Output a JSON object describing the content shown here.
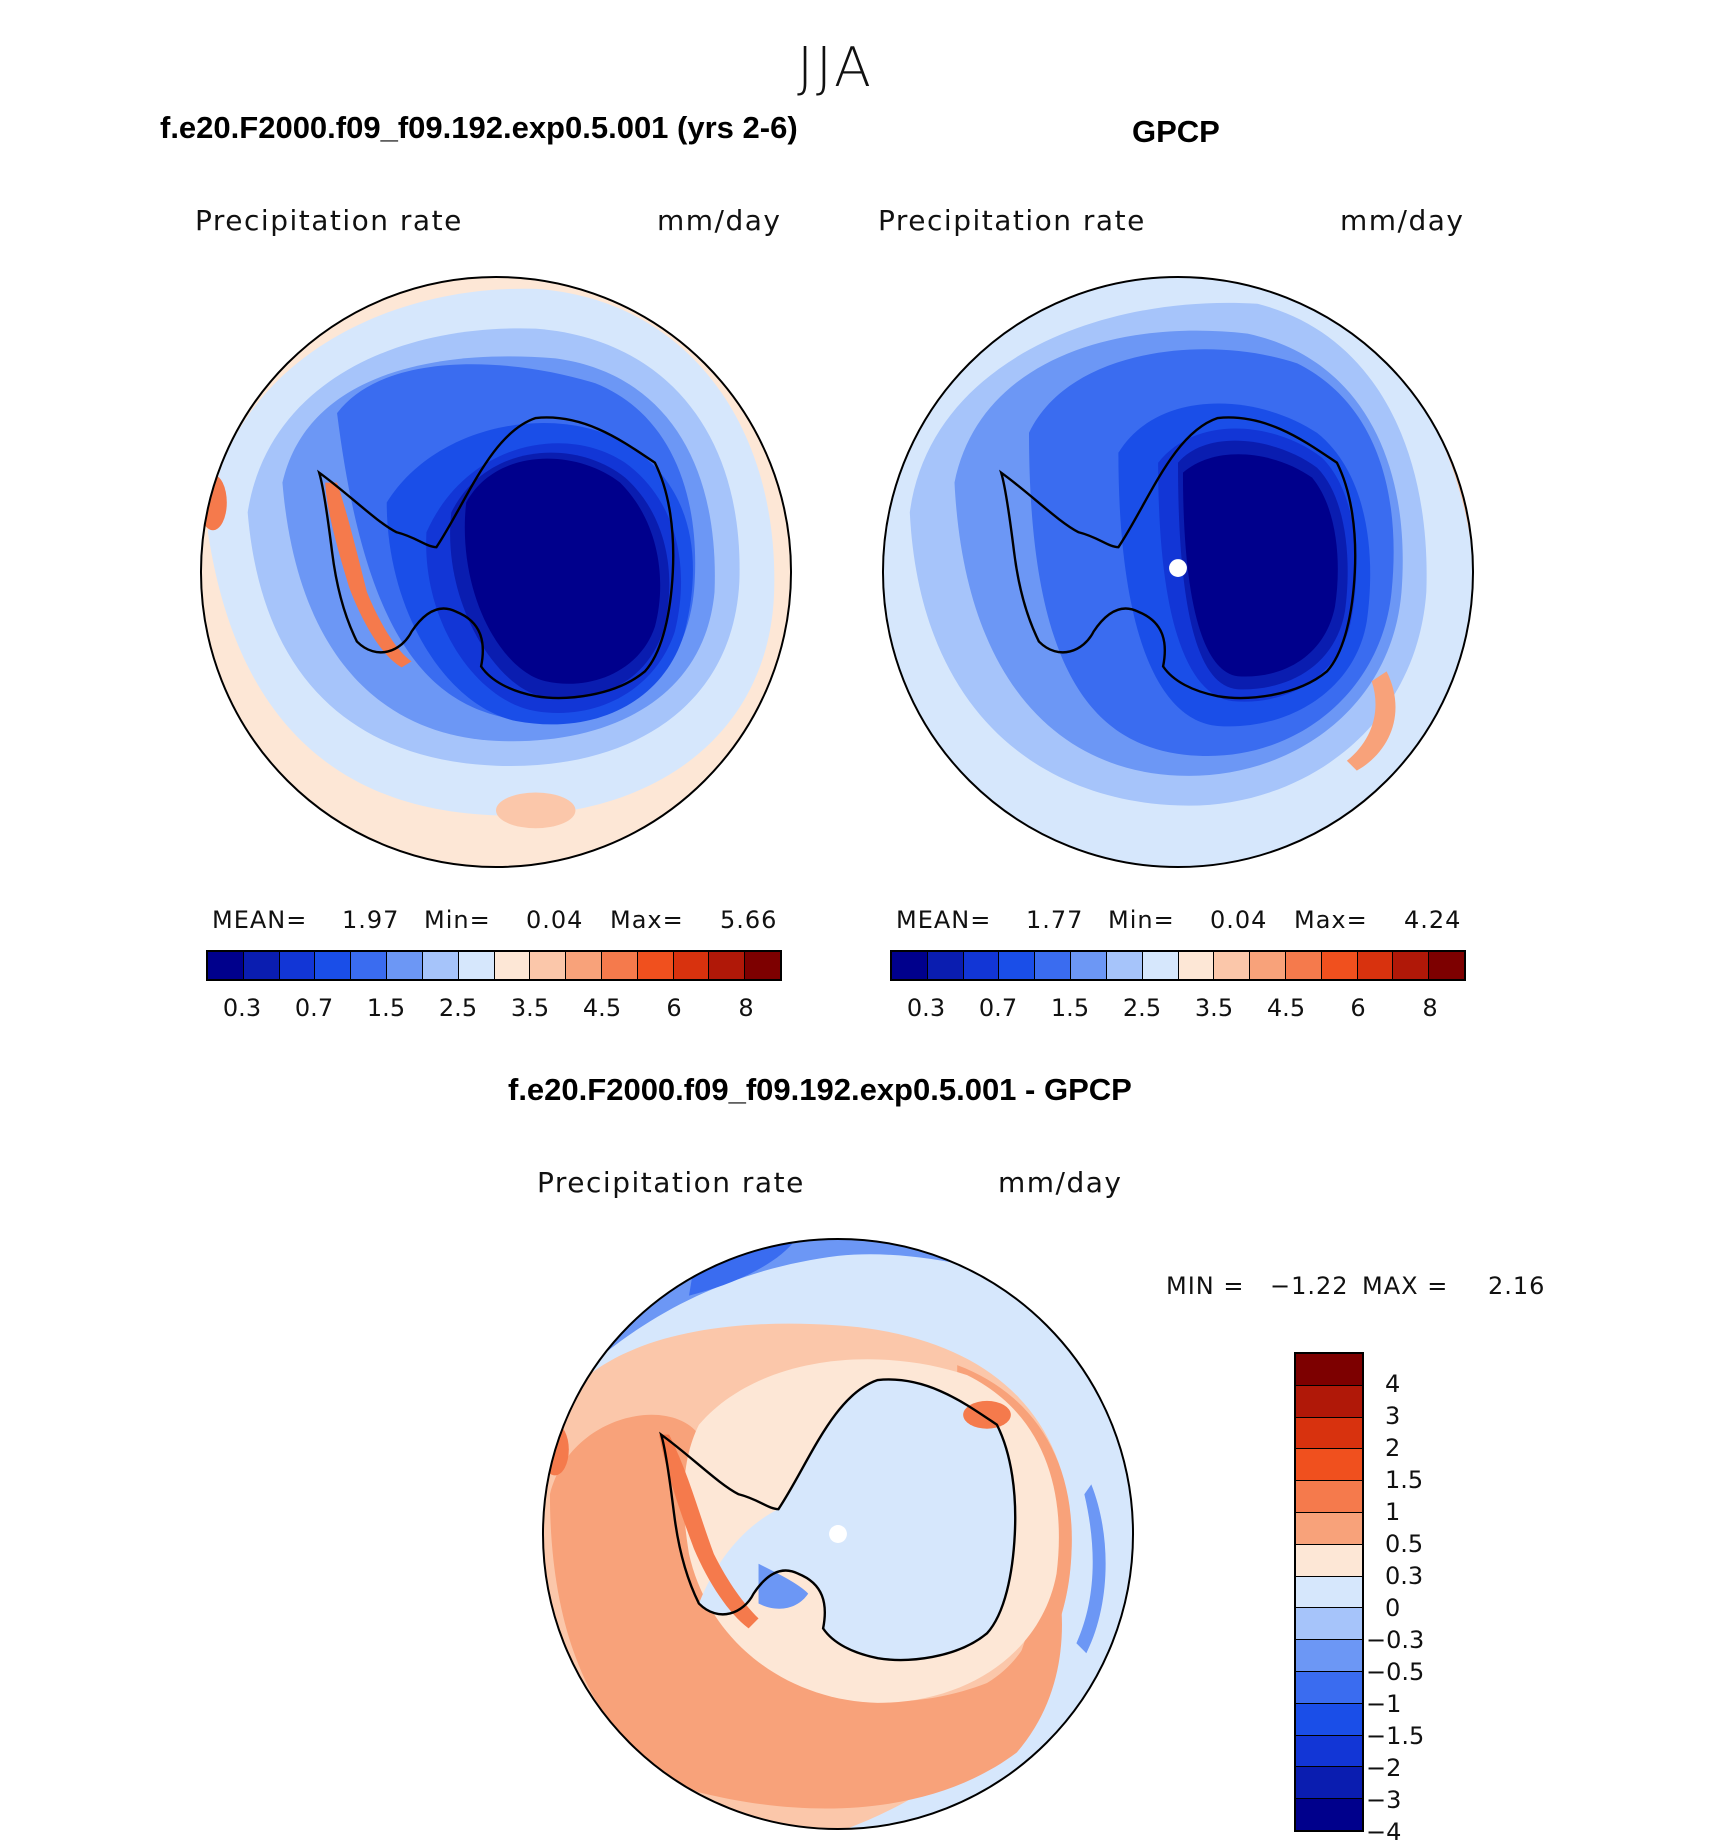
{
  "figure": {
    "title": "JJA",
    "panels": [
      {
        "id": "model",
        "case_title": "f.e20.F2000.f09_f09.192.exp0.5.001 (yrs 2-6)",
        "variable": "Precipitation  rate",
        "units": "mm/day",
        "stats": {
          "mean_label": "MEAN=",
          "mean": "1.97",
          "min_label": "Min=",
          "min": "0.04",
          "max_label": "Max=",
          "max": "5.66"
        }
      },
      {
        "id": "obs",
        "case_title": "GPCP",
        "variable": "Precipitation  rate",
        "units": "mm/day",
        "stats": {
          "mean_label": "MEAN=",
          "mean": "1.77",
          "min_label": "Min=",
          "min": "0.04",
          "max_label": "Max=",
          "max": "4.24"
        }
      },
      {
        "id": "diff",
        "case_title": "f.e20.F2000.f09_f09.192.exp0.5.001 - GPCP",
        "variable": "Precipitation  rate",
        "units": "mm/day",
        "stats": {
          "min_label": "MIN =",
          "min": "−1.22",
          "max_label": "MAX =",
          "max": "2.16"
        }
      }
    ],
    "abs_colorbar": {
      "colors": [
        "#00008c",
        "#0a1db0",
        "#1236d6",
        "#1a4ee8",
        "#3a6cf0",
        "#6c97f5",
        "#a6c4fa",
        "#d6e7fc",
        "#fde7d6",
        "#fbc7aa",
        "#f8a27a",
        "#f57a4c",
        "#f0501e",
        "#d8320e",
        "#b01808",
        "#7d0000"
      ],
      "tick_labels": [
        "0.3",
        "0.7",
        "1.5",
        "2.5",
        "3.5",
        "4.5",
        "6",
        "8"
      ]
    },
    "diff_colorbar": {
      "colors_top_to_bottom": [
        "#7d0000",
        "#b01808",
        "#d8320e",
        "#f0501e",
        "#f57a4c",
        "#f8a27a",
        "#fde7d6",
        "#d6e7fc",
        "#a6c4fa",
        "#6c97f5",
        "#3a6cf0",
        "#1a4ee8",
        "#1236d6",
        "#0a1db0",
        "#00008c"
      ],
      "tick_labels": [
        "4",
        "3",
        "2",
        "1.5",
        "1",
        "0.5",
        "0.3",
        "0",
        "−0.3",
        "−0.5",
        "−1",
        "−1.5",
        "−2",
        "−3",
        "−4"
      ]
    },
    "map_colors": {
      "d1": "#00008c",
      "d2": "#0a1db0",
      "d3": "#1236d6",
      "b4": "#1a4ee8",
      "b5": "#3a6cf0",
      "b6": "#6c97f5",
      "b7": "#a6c4fa",
      "b8": "#d6e7fc",
      "r1": "#fde7d6",
      "r2": "#fbc7aa",
      "r3": "#f8a27a",
      "r4": "#f57a4c",
      "r5": "#f0501e"
    }
  }
}
